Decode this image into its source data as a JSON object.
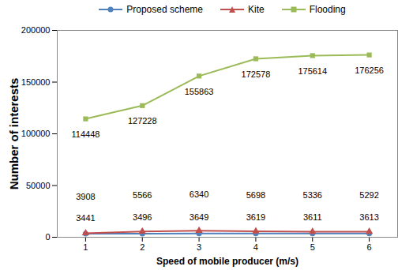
{
  "chart_data": {
    "type": "line",
    "x_label": "Speed of mobile producer (m/s)",
    "y_label": "Number of interests",
    "x": [
      1,
      2,
      3,
      4,
      5,
      6
    ],
    "series": [
      {
        "name": "Proposed scheme",
        "color": "#4f81bd",
        "marker": "circle",
        "values": [
          3441,
          3496,
          3649,
          3619,
          3611,
          3613
        ]
      },
      {
        "name": "Kite",
        "color": "#c0504d",
        "marker": "triangle",
        "values": [
          3908,
          5566,
          6340,
          5698,
          5336,
          5292
        ]
      },
      {
        "name": "Flooding",
        "color": "#9bbb59",
        "marker": "square",
        "values": [
          114448,
          127228,
          155863,
          172578,
          175614,
          176256
        ]
      }
    ],
    "xlim": [
      0.5,
      6.5
    ],
    "xticks": [
      1,
      2,
      3,
      4,
      5,
      6
    ],
    "ylim": [
      0,
      200000
    ],
    "yticks": [
      0,
      50000,
      100000,
      150000,
      200000
    ],
    "grid": false,
    "legend": "top",
    "data_labels": true
  }
}
